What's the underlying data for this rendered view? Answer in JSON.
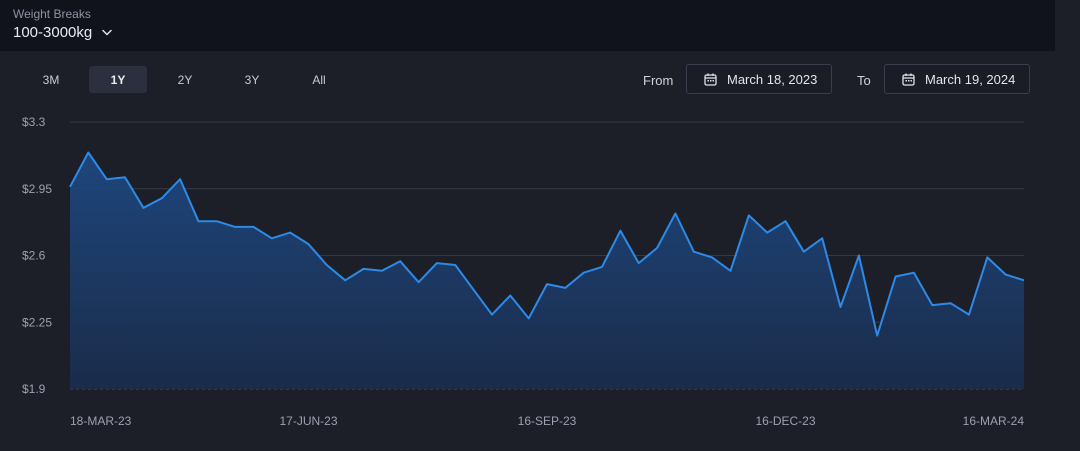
{
  "header": {
    "label": "Weight Breaks",
    "selected": "100-3000kg"
  },
  "ranges": [
    "3M",
    "1Y",
    "2Y",
    "3Y",
    "All"
  ],
  "active_range": "1Y",
  "date_range": {
    "from_label": "From",
    "from_value": "March 18, 2023",
    "to_label": "To",
    "to_value": "March 19, 2024"
  },
  "colors": {
    "line": "#2d8ae6",
    "area_top": "#1e4a85",
    "area_bottom": "#1a2c4b",
    "background": "#1c1e28"
  },
  "chart_data": {
    "type": "area",
    "title": "",
    "xlabel": "",
    "ylabel": "",
    "yticks": [
      "$3.3",
      "$2.95",
      "$2.6",
      "$2.25",
      "$1.9"
    ],
    "ylim": [
      1.9,
      3.3
    ],
    "xticks": [
      "18-MAR-23",
      "17-JUN-23",
      "16-SEP-23",
      "16-DEC-23",
      "16-MAR-24"
    ],
    "grid": true,
    "series": [
      {
        "values": [
          2.96,
          3.14,
          3.0,
          3.01,
          2.85,
          2.9,
          3.0,
          2.78,
          2.78,
          2.75,
          2.75,
          2.69,
          2.72,
          2.66,
          2.55,
          2.47,
          2.53,
          2.52,
          2.57,
          2.46,
          2.56,
          2.55,
          2.42,
          2.29,
          2.39,
          2.27,
          2.45,
          2.43,
          2.51,
          2.54,
          2.73,
          2.56,
          2.64,
          2.82,
          2.62,
          2.59,
          2.52,
          2.81,
          2.72,
          2.78,
          2.62,
          2.69,
          2.33,
          2.6,
          2.18,
          2.49,
          2.51,
          2.34,
          2.35,
          2.29,
          2.59,
          2.5,
          2.47
        ]
      }
    ]
  }
}
